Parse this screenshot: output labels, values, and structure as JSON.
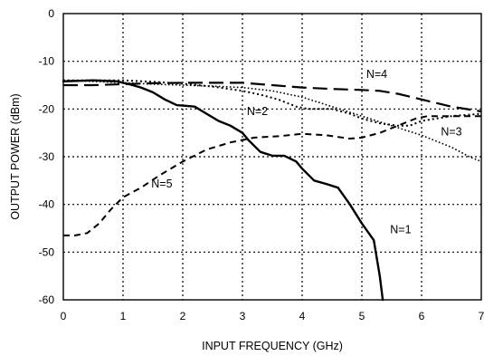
{
  "chart_data": {
    "type": "line",
    "title": "",
    "xlabel": "INPUT FREQUENCY (GHz)",
    "ylabel": "OUTPUT POWER (dBm)",
    "xlim": [
      0,
      7
    ],
    "ylim": [
      -60,
      0
    ],
    "xticks": [
      0,
      1,
      2,
      3,
      4,
      5,
      6,
      7
    ],
    "yticks": [
      0,
      -10,
      -20,
      -30,
      -40,
      -50,
      -60
    ],
    "grid": true,
    "legend": "none",
    "series": [
      {
        "name": "N=1",
        "style": "solid",
        "x": [
          0,
          0.5,
          0.9,
          1.1,
          1.3,
          1.5,
          1.7,
          1.9,
          2.0,
          2.2,
          2.4,
          2.6,
          2.8,
          3.0,
          3.1,
          3.3,
          3.5,
          3.7,
          3.9,
          4.0,
          4.2,
          4.4,
          4.6,
          4.8,
          5.0,
          5.2,
          5.3,
          5.35
        ],
        "y": [
          -14.2,
          -14,
          -14.2,
          -14.8,
          -15.5,
          -16.5,
          -18,
          -19.2,
          -19.3,
          -19.5,
          -21,
          -22.5,
          -23.5,
          -25,
          -26.5,
          -29,
          -29.8,
          -29.8,
          -31,
          -32.5,
          -35,
          -35.7,
          -36.5,
          -40,
          -44,
          -47.5,
          -55,
          -60
        ]
      },
      {
        "name": "N=2",
        "style": "dotted",
        "x": [
          0,
          0.5,
          1.0,
          1.5,
          2.0,
          2.5,
          3.0,
          3.3,
          3.6,
          3.9,
          4.1,
          4.5,
          4.8,
          5.0,
          5.3,
          5.6,
          5.8,
          6.0,
          6.5,
          7.0
        ],
        "y": [
          -14,
          -14,
          -14,
          -14.3,
          -14.7,
          -15.3,
          -16.2,
          -17,
          -18,
          -19.5,
          -20,
          -20,
          -21,
          -22,
          -23,
          -23.5,
          -23.5,
          -22.5,
          -21.5,
          -21
        ]
      },
      {
        "name": "N=3",
        "style": "dotted-fine",
        "x": [
          0,
          0.5,
          1.0,
          1.5,
          2.0,
          2.5,
          3.0,
          3.5,
          4.0,
          4.5,
          5.0,
          5.5,
          6.0,
          6.5,
          6.8,
          7.0
        ],
        "y": [
          -14,
          -14.2,
          -14.5,
          -14.8,
          -15,
          -15.2,
          -15.5,
          -16.2,
          -17.5,
          -19.5,
          -21.5,
          -23.5,
          -25.5,
          -28,
          -30,
          -31
        ]
      },
      {
        "name": "N=4",
        "style": "long-dash",
        "x": [
          0,
          0.5,
          1.0,
          1.5,
          2.0,
          2.5,
          3.0,
          3.5,
          4.0,
          4.5,
          5.0,
          5.3,
          5.6,
          6.0,
          6.5,
          7.0
        ],
        "y": [
          -15,
          -15,
          -14.8,
          -14.6,
          -14.5,
          -14.5,
          -14.5,
          -15,
          -15.5,
          -15.8,
          -16,
          -16.2,
          -16.8,
          -18,
          -19.5,
          -20.5
        ]
      },
      {
        "name": "N=5",
        "style": "dashed",
        "x": [
          0,
          0.2,
          0.4,
          0.6,
          0.8,
          1.0,
          1.3,
          1.6,
          2.0,
          2.4,
          2.8,
          3.2,
          3.6,
          4.0,
          4.4,
          4.8,
          5.0,
          5.3,
          5.6,
          5.9,
          6.1,
          6.5,
          7.0
        ],
        "y": [
          -46.5,
          -46.5,
          -46,
          -44,
          -41,
          -38.5,
          -36.5,
          -34,
          -31,
          -28.5,
          -27,
          -26,
          -25.7,
          -25.2,
          -25.5,
          -26.2,
          -26,
          -25,
          -23.5,
          -22,
          -21.5,
          -21.5,
          -21.5
        ]
      }
    ],
    "annotations": [
      {
        "text": "N=1",
        "x": 5.65,
        "y": -46
      },
      {
        "text": "N=2",
        "x": 3.25,
        "y": -21.3
      },
      {
        "text": "N=3",
        "x": 6.5,
        "y": -25.5
      },
      {
        "text": "N=4",
        "x": 5.25,
        "y": -13.5
      },
      {
        "text": "N=5",
        "x": 1.65,
        "y": -36.5
      }
    ]
  }
}
